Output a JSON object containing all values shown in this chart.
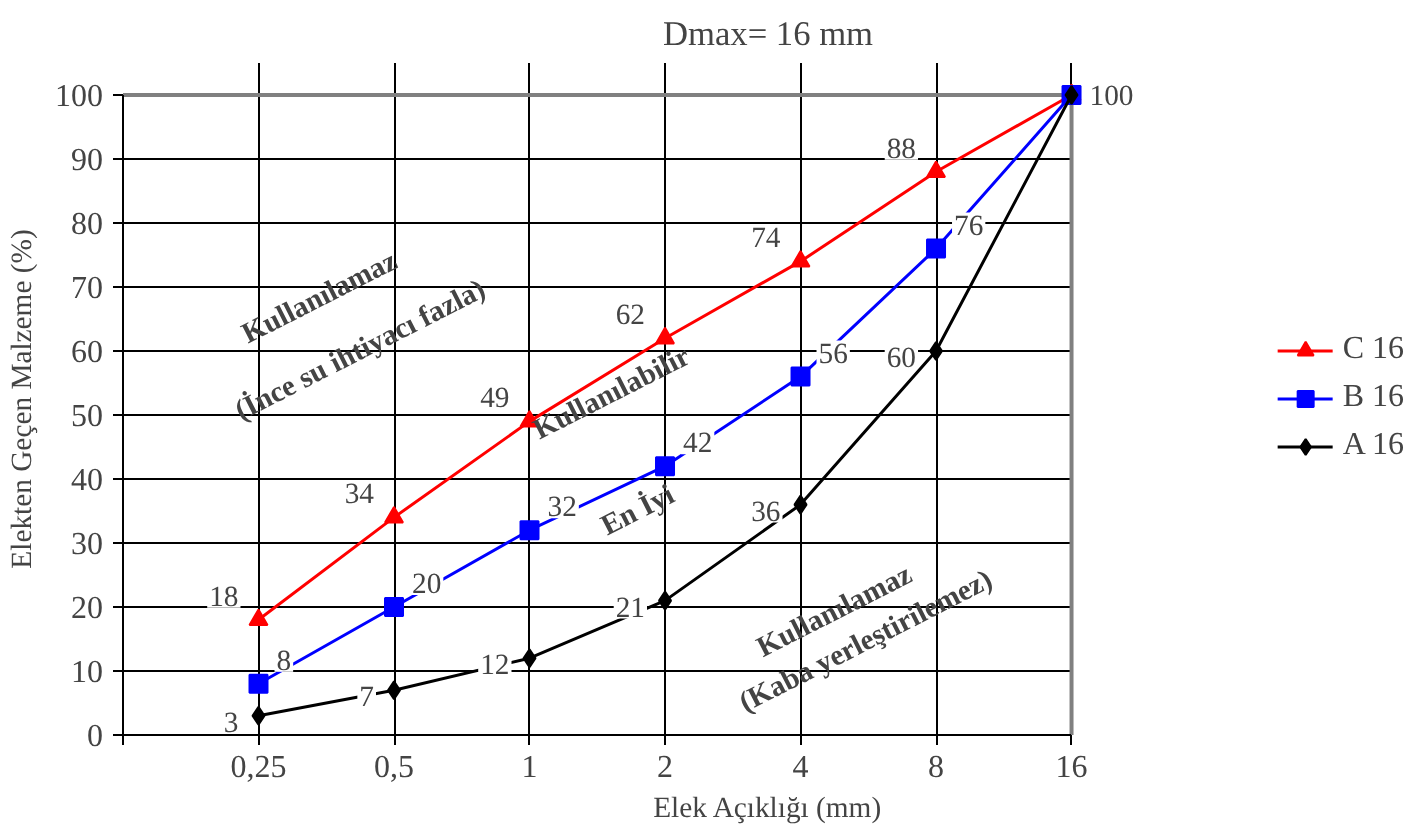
{
  "chart_data": {
    "type": "line",
    "title": "Dmax= 16 mm",
    "xlabel": "Elek Açıklığı (mm)",
    "ylabel": "Elekten Geçen Malzeme (%)",
    "categories": [
      null,
      "0,25",
      "0,5",
      "1",
      "2",
      "4",
      "8",
      "16"
    ],
    "ylim": [
      0,
      100
    ],
    "yticks": [
      0,
      10,
      20,
      30,
      40,
      50,
      60,
      70,
      80,
      90,
      100
    ],
    "grid": true,
    "legend": "right",
    "series": [
      {
        "name": "C 16",
        "color": "#ff0000",
        "marker": "triangle",
        "values": [
          null,
          18,
          34,
          49,
          62,
          74,
          88,
          100
        ],
        "value_labels": [
          null,
          "18",
          "34",
          "49",
          "62",
          "74",
          "88",
          "100"
        ]
      },
      {
        "name": "B 16",
        "color": "#0000ff",
        "marker": "square",
        "values": [
          null,
          8,
          20,
          32,
          42,
          56,
          76,
          100
        ],
        "value_labels": [
          null,
          "8",
          "20",
          "32",
          "42",
          "56",
          "76",
          null
        ]
      },
      {
        "name": "A 16",
        "color": "#000000",
        "marker": "diamond",
        "values": [
          null,
          3,
          7,
          12,
          21,
          36,
          60,
          100
        ],
        "value_labels": [
          null,
          "3",
          "7",
          "12",
          "21",
          "36",
          "60",
          null
        ]
      }
    ],
    "annotations": [
      "Kullanılamaz",
      "(İnce su ihtiyacı fazla)",
      "Kullanılabilir",
      "En İyi",
      "Kullanılamaz",
      "(Kaba yerleştirilemez)"
    ]
  }
}
